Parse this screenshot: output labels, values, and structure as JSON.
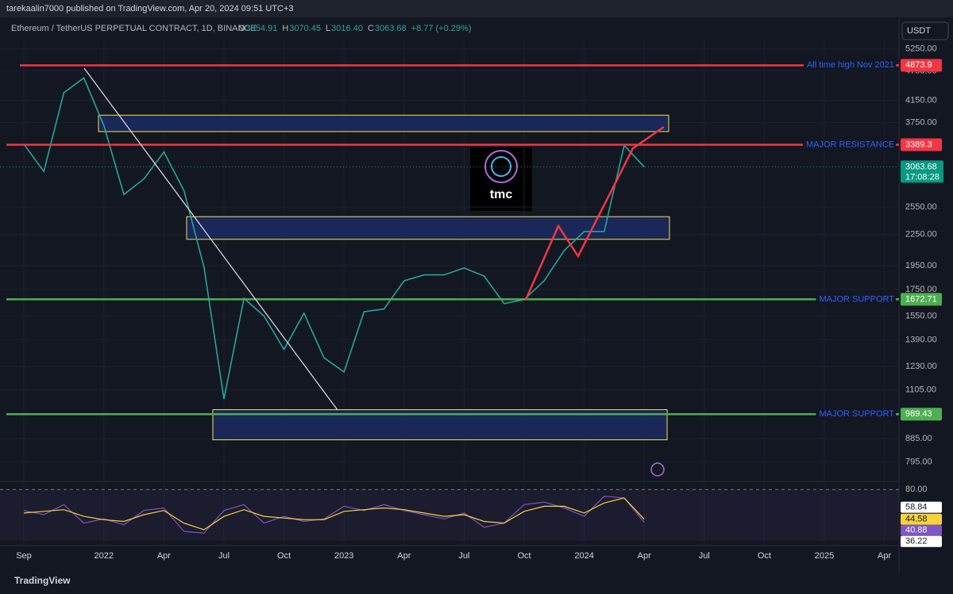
{
  "header": {
    "publisher": "tarekaalin7000 published on TradingView.com, Apr 20, 2024 09:51 UTC+3",
    "symbol": "Ethereum / TetherUS PERPETUAL CONTRACT, 1D, BINANCE",
    "ohlc": [
      {
        "key": "O",
        "value": "3054.91"
      },
      {
        "key": "H",
        "value": "3070.45"
      },
      {
        "key": "L",
        "value": "3016.40"
      },
      {
        "key": "C",
        "value": "3063.68"
      }
    ],
    "change": "+8.77 (+0.29%)",
    "currency": "USDT",
    "logo": "tmc",
    "footer": "TradingView"
  },
  "chart_data": [
    {
      "type": "line",
      "log_scale": true,
      "categories": [
        "Sep",
        null,
        null,
        null,
        "2022",
        null,
        null,
        "Apr",
        null,
        null,
        "Jul",
        null,
        null,
        "Oct",
        null,
        null,
        "2023",
        null,
        null,
        "Apr",
        null,
        null,
        "Jul",
        null,
        null,
        "Oct",
        null,
        null,
        "2024",
        null,
        null,
        "Apr",
        null,
        null,
        "Jul",
        null,
        null,
        "Oct",
        null,
        null,
        "2025",
        null,
        null,
        "Apr"
      ],
      "series": [
        {
          "color": "#26a69a",
          "values": [
            3400,
            3000,
            4300,
            4600,
            3700,
            2700,
            2900,
            3280,
            2750,
            1940,
            1060,
            1680,
            1550,
            1330,
            1570,
            1280,
            1200,
            1580,
            1600,
            1820,
            1870,
            1870,
            1930,
            1860,
            1640,
            1670,
            1820,
            2090,
            2280,
            2280,
            3380,
            3063.68,
            null,
            null,
            null,
            null,
            null,
            null,
            null,
            null,
            null,
            null,
            null,
            null
          ]
        }
      ],
      "ylim": [
        733,
        5440
      ],
      "yticks": [
        {
          "value": 5250,
          "label": "5250.00"
        },
        {
          "value": 4750,
          "label": "4750.00"
        },
        {
          "value": 4150,
          "label": "4150.00"
        },
        {
          "value": 3750,
          "label": "3750.00"
        },
        {
          "value": 2550,
          "label": "2550.00"
        },
        {
          "value": 2250,
          "label": "2250.00"
        },
        {
          "value": 1950,
          "label": "1950.00"
        },
        {
          "value": 1750,
          "label": "1750.00"
        },
        {
          "value": 1550,
          "label": "1550.00"
        },
        {
          "value": 1390,
          "label": "1390.00"
        },
        {
          "value": 1230,
          "label": "1230.00"
        },
        {
          "value": 1105,
          "label": "1105.00"
        },
        {
          "value": 885,
          "label": "885.00"
        },
        {
          "value": 795,
          "label": "795.00"
        }
      ],
      "levels": [
        {
          "value": 4873.9,
          "label": "All time high Nov 2021",
          "color": "#f23645"
        },
        {
          "value": 3389.3,
          "label": "MAJOR RESISTANCE",
          "color": "#f23645"
        },
        {
          "value": 1672.71,
          "label": "MAJOR SUPPORT",
          "color": "#4caf50"
        },
        {
          "value": 989.43,
          "label": "MAJOR SUPPORT",
          "color": "#4caf50"
        }
      ],
      "last_price": {
        "value": 3063.68,
        "countdown": "17:08:28",
        "color": "#089981"
      },
      "zones": [
        [
          3600,
          3880
        ],
        [
          2200,
          2440
        ],
        [
          880,
          1010
        ]
      ]
    },
    {
      "type": "line",
      "series": [
        {
          "color": "#7e57c2",
          "values": [
            55,
            50,
            62,
            40,
            45,
            38,
            55,
            58,
            30,
            28,
            55,
            62,
            40,
            48,
            42,
            45,
            60,
            55,
            62,
            55,
            50,
            45,
            52,
            35,
            40,
            62,
            65,
            58,
            48,
            72,
            70,
            40.88
          ]
        },
        {
          "color": "#f7d33a",
          "values": [
            52,
            54,
            56,
            48,
            44,
            42,
            50,
            55,
            40,
            32,
            48,
            56,
            48,
            46,
            44,
            44,
            54,
            56,
            58,
            56,
            52,
            48,
            50,
            42,
            40,
            54,
            60,
            60,
            52,
            64,
            70,
            44.58
          ]
        }
      ],
      "ylim": [
        15,
        85
      ],
      "yticks": [
        {
          "value": 80,
          "label": "80.00"
        }
      ],
      "badges": [
        {
          "value": 58.84,
          "color": "#ffffff"
        },
        {
          "value": 44.58,
          "color": "#f7d33a"
        },
        {
          "value": 40.88,
          "color": "#7e57c2"
        },
        {
          "value": 36.22,
          "color": "#ffffff"
        }
      ]
    }
  ]
}
